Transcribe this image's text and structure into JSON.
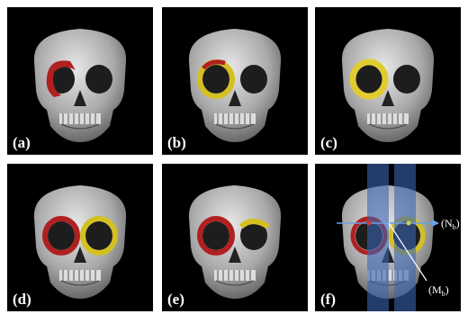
{
  "panels": [
    {
      "label": "(a)"
    },
    {
      "label": "(b)"
    },
    {
      "label": "(c)"
    },
    {
      "label": "(d)"
    },
    {
      "label": "(e)"
    },
    {
      "label": "(f)"
    }
  ],
  "annotations": {
    "n": {
      "open": "(N",
      "sub": "b",
      "close": ")"
    },
    "m": {
      "open": "(M",
      "sub": "b",
      "close": ")"
    }
  }
}
